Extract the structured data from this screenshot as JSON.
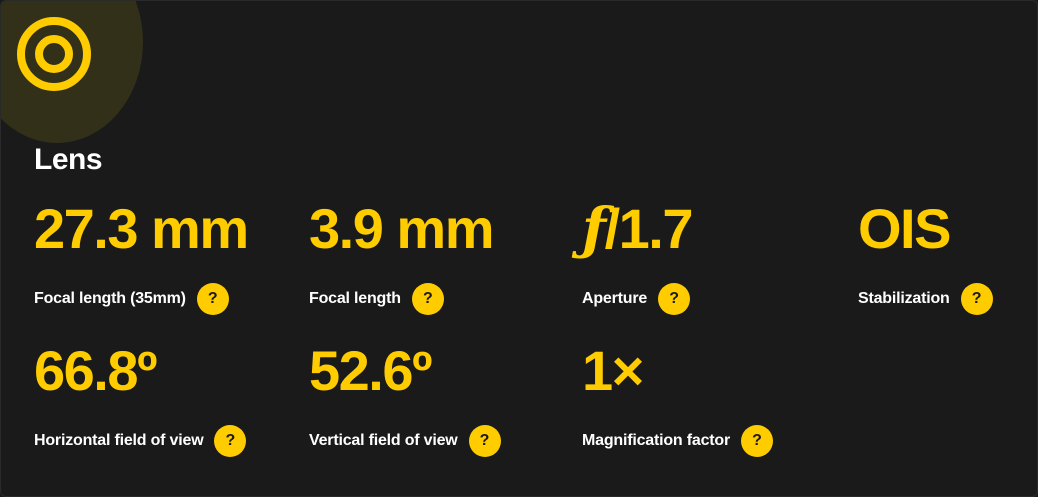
{
  "section": {
    "title": "Lens",
    "icon": "lens-icon",
    "accent_color": "#ffcc00"
  },
  "specs": [
    {
      "value": "27.3 mm",
      "label": "Focal length (35mm)",
      "help": "?"
    },
    {
      "value": "3.9 mm",
      "label": "Focal length",
      "help": "?"
    },
    {
      "value_prefix": "ƒ",
      "value": "/1.7",
      "label": "Aperture",
      "help": "?"
    },
    {
      "value": "OIS",
      "label": "Stabilization",
      "help": "?"
    },
    {
      "value": "66.8º",
      "label": "Horizontal field of view",
      "help": "?"
    },
    {
      "value": "52.6º",
      "label": "Vertical field of view",
      "help": "?"
    },
    {
      "value": "1×",
      "label": "Magnification factor",
      "help": "?"
    }
  ]
}
